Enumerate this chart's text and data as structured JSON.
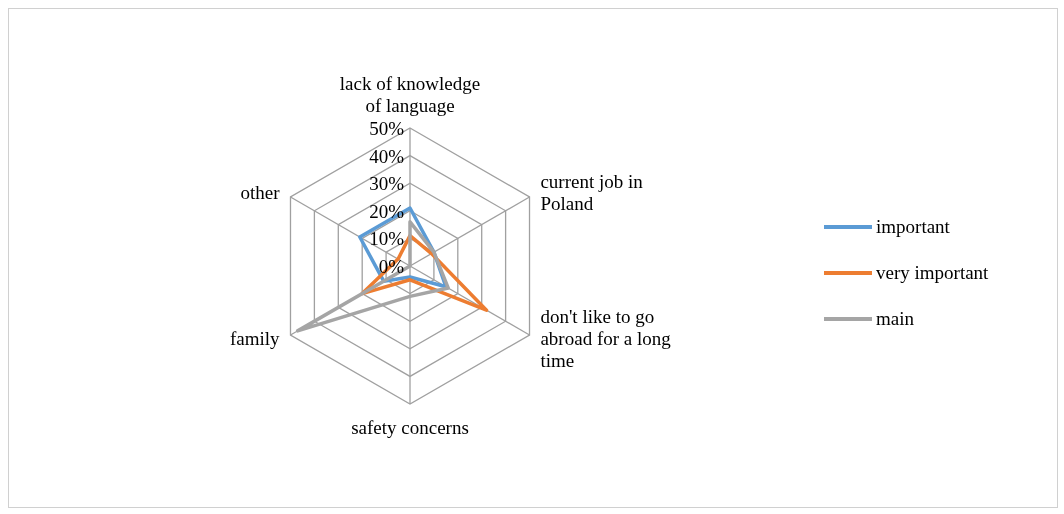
{
  "chart_data": {
    "type": "radar",
    "categories": [
      "lack of knowledge of language",
      "current job in Poland",
      "don't like to go abroad for a long time",
      "safety concerns",
      "family",
      "other"
    ],
    "series": [
      {
        "name": "important",
        "color": "#5b9bd5",
        "values": [
          21,
          10,
          15,
          4,
          11,
          21
        ]
      },
      {
        "name": "very important",
        "color": "#ed7d31",
        "values": [
          11,
          9,
          32,
          5,
          20,
          5
        ]
      },
      {
        "name": "main",
        "color": "#a5a5a5",
        "values": [
          16,
          10,
          16,
          11,
          47,
          0
        ]
      }
    ],
    "ylim": [
      0,
      50
    ],
    "yticks": [
      {
        "value": 0,
        "label": "0%"
      },
      {
        "value": 10,
        "label": "10%"
      },
      {
        "value": 20,
        "label": "20%"
      },
      {
        "value": 30,
        "label": "30%"
      },
      {
        "value": 40,
        "label": "40%"
      },
      {
        "value": 50,
        "label": "50%"
      }
    ],
    "grid": true,
    "legend": "right",
    "line_style": "solid",
    "marker": "none"
  }
}
